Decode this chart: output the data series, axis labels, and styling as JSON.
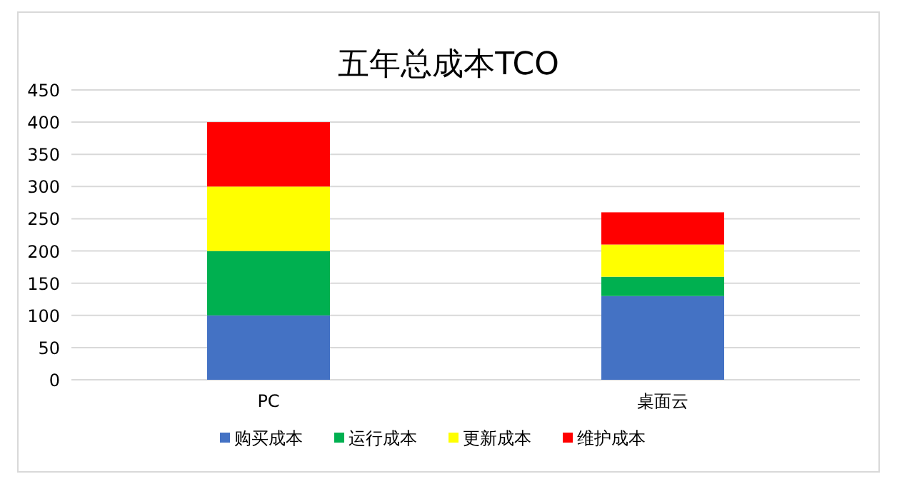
{
  "chart_data": {
    "type": "bar",
    "stacked": true,
    "title": "五年总成本TCO",
    "categories": [
      "PC",
      "桌面云"
    ],
    "series": [
      {
        "name": "购买成本",
        "color": "#4472c4",
        "values": [
          100,
          130
        ]
      },
      {
        "name": "运行成本",
        "color": "#00b050",
        "values": [
          100,
          30
        ]
      },
      {
        "name": "更新成本",
        "color": "#ffff00",
        "values": [
          100,
          50
        ]
      },
      {
        "name": "维护成本",
        "color": "#ff0000",
        "values": [
          100,
          50
        ]
      }
    ],
    "ylim": [
      0,
      450
    ],
    "yticks": [
      0,
      50,
      100,
      150,
      200,
      250,
      300,
      350,
      400,
      450
    ],
    "grid": "y",
    "legend": "bottom"
  }
}
